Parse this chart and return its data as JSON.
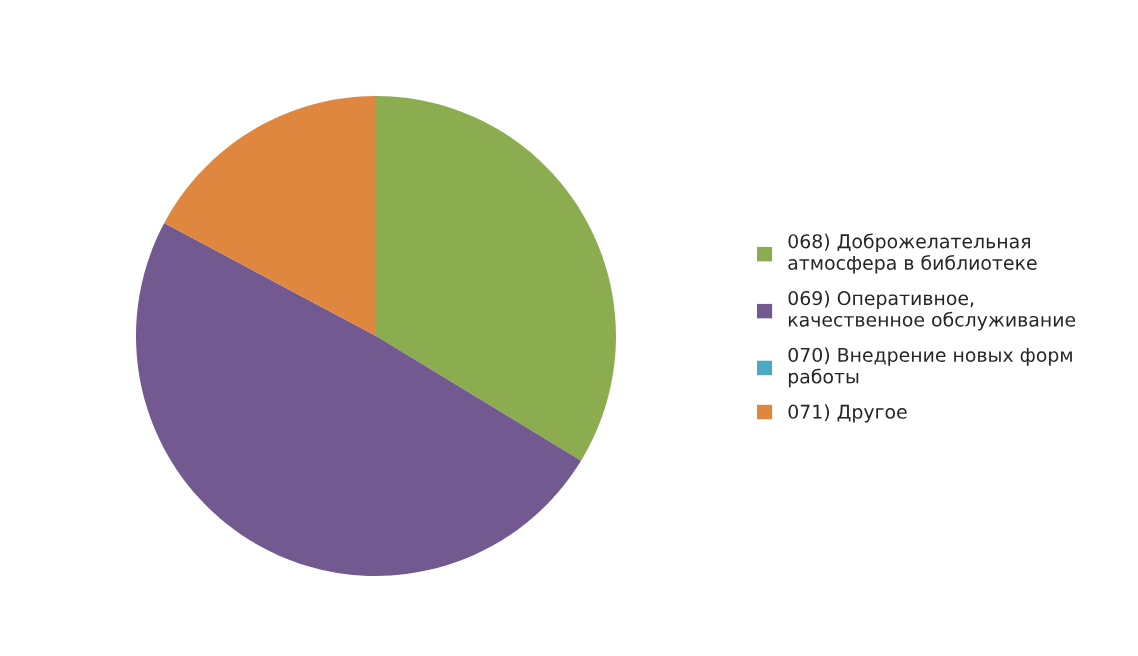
{
  "chart_data": {
    "type": "pie",
    "categories": [
      "068) Доброжелательная\nатмосфера в библиотеке",
      "069) Оперативное,\nкачественное обслуживание",
      "070) Внедрение новых форм\nработы",
      "071) Другое"
    ],
    "values": [
      33.7,
      49.1,
      0,
      17.2
    ],
    "colors": [
      "#8cac50",
      "#72598f",
      "#4aaac4",
      "#e0873f"
    ],
    "legend": "right"
  }
}
